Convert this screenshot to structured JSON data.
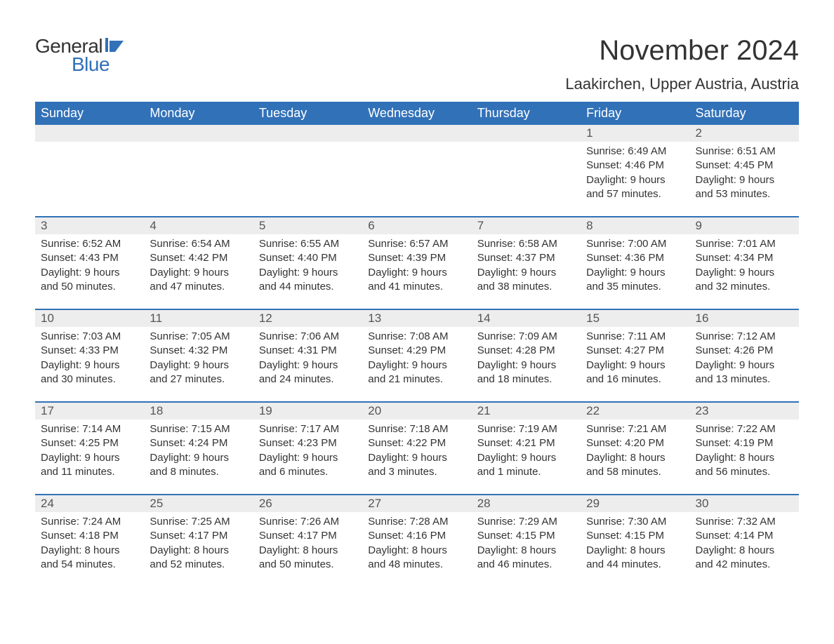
{
  "logo": {
    "text_general": "General",
    "text_blue": "Blue",
    "flag_color": "#3171b8"
  },
  "title": "November 2024",
  "location": "Laakirchen, Upper Austria, Austria",
  "colors": {
    "header_bg": "#3171b8",
    "header_text": "#ffffff",
    "daynum_bg": "#ededed",
    "body_text": "#333333",
    "row_border": "#3171b8"
  },
  "day_headers": [
    "Sunday",
    "Monday",
    "Tuesday",
    "Wednesday",
    "Thursday",
    "Friday",
    "Saturday"
  ],
  "weeks": [
    [
      {
        "empty": true
      },
      {
        "empty": true
      },
      {
        "empty": true
      },
      {
        "empty": true
      },
      {
        "empty": true
      },
      {
        "num": "1",
        "sunrise": "Sunrise: 6:49 AM",
        "sunset": "Sunset: 4:46 PM",
        "daylight1": "Daylight: 9 hours",
        "daylight2": "and 57 minutes."
      },
      {
        "num": "2",
        "sunrise": "Sunrise: 6:51 AM",
        "sunset": "Sunset: 4:45 PM",
        "daylight1": "Daylight: 9 hours",
        "daylight2": "and 53 minutes."
      }
    ],
    [
      {
        "num": "3",
        "sunrise": "Sunrise: 6:52 AM",
        "sunset": "Sunset: 4:43 PM",
        "daylight1": "Daylight: 9 hours",
        "daylight2": "and 50 minutes."
      },
      {
        "num": "4",
        "sunrise": "Sunrise: 6:54 AM",
        "sunset": "Sunset: 4:42 PM",
        "daylight1": "Daylight: 9 hours",
        "daylight2": "and 47 minutes."
      },
      {
        "num": "5",
        "sunrise": "Sunrise: 6:55 AM",
        "sunset": "Sunset: 4:40 PM",
        "daylight1": "Daylight: 9 hours",
        "daylight2": "and 44 minutes."
      },
      {
        "num": "6",
        "sunrise": "Sunrise: 6:57 AM",
        "sunset": "Sunset: 4:39 PM",
        "daylight1": "Daylight: 9 hours",
        "daylight2": "and 41 minutes."
      },
      {
        "num": "7",
        "sunrise": "Sunrise: 6:58 AM",
        "sunset": "Sunset: 4:37 PM",
        "daylight1": "Daylight: 9 hours",
        "daylight2": "and 38 minutes."
      },
      {
        "num": "8",
        "sunrise": "Sunrise: 7:00 AM",
        "sunset": "Sunset: 4:36 PM",
        "daylight1": "Daylight: 9 hours",
        "daylight2": "and 35 minutes."
      },
      {
        "num": "9",
        "sunrise": "Sunrise: 7:01 AM",
        "sunset": "Sunset: 4:34 PM",
        "daylight1": "Daylight: 9 hours",
        "daylight2": "and 32 minutes."
      }
    ],
    [
      {
        "num": "10",
        "sunrise": "Sunrise: 7:03 AM",
        "sunset": "Sunset: 4:33 PM",
        "daylight1": "Daylight: 9 hours",
        "daylight2": "and 30 minutes."
      },
      {
        "num": "11",
        "sunrise": "Sunrise: 7:05 AM",
        "sunset": "Sunset: 4:32 PM",
        "daylight1": "Daylight: 9 hours",
        "daylight2": "and 27 minutes."
      },
      {
        "num": "12",
        "sunrise": "Sunrise: 7:06 AM",
        "sunset": "Sunset: 4:31 PM",
        "daylight1": "Daylight: 9 hours",
        "daylight2": "and 24 minutes."
      },
      {
        "num": "13",
        "sunrise": "Sunrise: 7:08 AM",
        "sunset": "Sunset: 4:29 PM",
        "daylight1": "Daylight: 9 hours",
        "daylight2": "and 21 minutes."
      },
      {
        "num": "14",
        "sunrise": "Sunrise: 7:09 AM",
        "sunset": "Sunset: 4:28 PM",
        "daylight1": "Daylight: 9 hours",
        "daylight2": "and 18 minutes."
      },
      {
        "num": "15",
        "sunrise": "Sunrise: 7:11 AM",
        "sunset": "Sunset: 4:27 PM",
        "daylight1": "Daylight: 9 hours",
        "daylight2": "and 16 minutes."
      },
      {
        "num": "16",
        "sunrise": "Sunrise: 7:12 AM",
        "sunset": "Sunset: 4:26 PM",
        "daylight1": "Daylight: 9 hours",
        "daylight2": "and 13 minutes."
      }
    ],
    [
      {
        "num": "17",
        "sunrise": "Sunrise: 7:14 AM",
        "sunset": "Sunset: 4:25 PM",
        "daylight1": "Daylight: 9 hours",
        "daylight2": "and 11 minutes."
      },
      {
        "num": "18",
        "sunrise": "Sunrise: 7:15 AM",
        "sunset": "Sunset: 4:24 PM",
        "daylight1": "Daylight: 9 hours",
        "daylight2": "and 8 minutes."
      },
      {
        "num": "19",
        "sunrise": "Sunrise: 7:17 AM",
        "sunset": "Sunset: 4:23 PM",
        "daylight1": "Daylight: 9 hours",
        "daylight2": "and 6 minutes."
      },
      {
        "num": "20",
        "sunrise": "Sunrise: 7:18 AM",
        "sunset": "Sunset: 4:22 PM",
        "daylight1": "Daylight: 9 hours",
        "daylight2": "and 3 minutes."
      },
      {
        "num": "21",
        "sunrise": "Sunrise: 7:19 AM",
        "sunset": "Sunset: 4:21 PM",
        "daylight1": "Daylight: 9 hours",
        "daylight2": "and 1 minute."
      },
      {
        "num": "22",
        "sunrise": "Sunrise: 7:21 AM",
        "sunset": "Sunset: 4:20 PM",
        "daylight1": "Daylight: 8 hours",
        "daylight2": "and 58 minutes."
      },
      {
        "num": "23",
        "sunrise": "Sunrise: 7:22 AM",
        "sunset": "Sunset: 4:19 PM",
        "daylight1": "Daylight: 8 hours",
        "daylight2": "and 56 minutes."
      }
    ],
    [
      {
        "num": "24",
        "sunrise": "Sunrise: 7:24 AM",
        "sunset": "Sunset: 4:18 PM",
        "daylight1": "Daylight: 8 hours",
        "daylight2": "and 54 minutes."
      },
      {
        "num": "25",
        "sunrise": "Sunrise: 7:25 AM",
        "sunset": "Sunset: 4:17 PM",
        "daylight1": "Daylight: 8 hours",
        "daylight2": "and 52 minutes."
      },
      {
        "num": "26",
        "sunrise": "Sunrise: 7:26 AM",
        "sunset": "Sunset: 4:17 PM",
        "daylight1": "Daylight: 8 hours",
        "daylight2": "and 50 minutes."
      },
      {
        "num": "27",
        "sunrise": "Sunrise: 7:28 AM",
        "sunset": "Sunset: 4:16 PM",
        "daylight1": "Daylight: 8 hours",
        "daylight2": "and 48 minutes."
      },
      {
        "num": "28",
        "sunrise": "Sunrise: 7:29 AM",
        "sunset": "Sunset: 4:15 PM",
        "daylight1": "Daylight: 8 hours",
        "daylight2": "and 46 minutes."
      },
      {
        "num": "29",
        "sunrise": "Sunrise: 7:30 AM",
        "sunset": "Sunset: 4:15 PM",
        "daylight1": "Daylight: 8 hours",
        "daylight2": "and 44 minutes."
      },
      {
        "num": "30",
        "sunrise": "Sunrise: 7:32 AM",
        "sunset": "Sunset: 4:14 PM",
        "daylight1": "Daylight: 8 hours",
        "daylight2": "and 42 minutes."
      }
    ]
  ]
}
